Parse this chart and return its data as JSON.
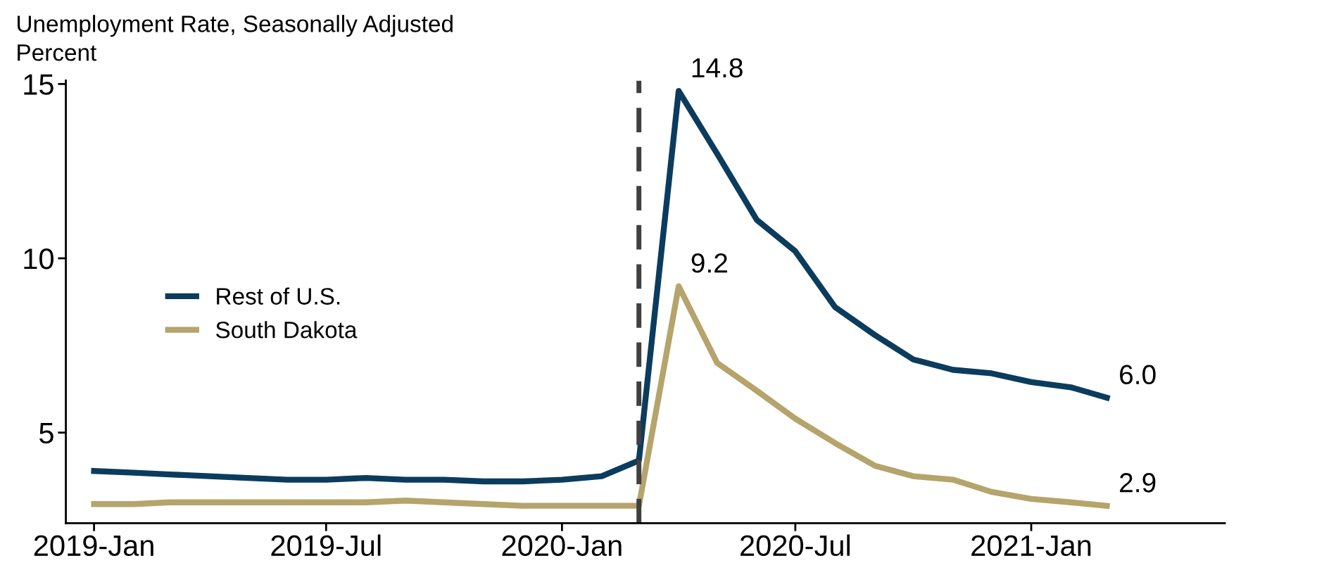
{
  "chart_data": {
    "type": "line",
    "title": "Unemployment Rate, Seasonally Adjusted",
    "subtitle": "Percent",
    "x": [
      "2019-01",
      "2019-02",
      "2019-03",
      "2019-04",
      "2019-05",
      "2019-06",
      "2019-07",
      "2019-08",
      "2019-09",
      "2019-10",
      "2019-11",
      "2019-12",
      "2020-01",
      "2020-02",
      "2020-03",
      "2020-04",
      "2020-05",
      "2020-06",
      "2020-07",
      "2020-08",
      "2020-09",
      "2020-10",
      "2020-11",
      "2020-12",
      "2021-01",
      "2021-02",
      "2021-03"
    ],
    "series": [
      {
        "name": "Rest of U.S.",
        "color": "#0b3c5d",
        "values": [
          3.9,
          3.85,
          3.8,
          3.75,
          3.7,
          3.65,
          3.65,
          3.7,
          3.65,
          3.65,
          3.6,
          3.6,
          3.65,
          3.75,
          4.2,
          14.8,
          13.0,
          11.1,
          10.2,
          8.6,
          7.8,
          7.1,
          6.8,
          6.7,
          6.45,
          6.3,
          6.0
        ]
      },
      {
        "name": "South Dakota",
        "color": "#b5a46b",
        "values": [
          2.95,
          2.95,
          3.0,
          3.0,
          3.0,
          3.0,
          3.0,
          3.0,
          3.05,
          3.0,
          2.95,
          2.9,
          2.9,
          2.9,
          2.9,
          9.2,
          7.0,
          6.2,
          5.4,
          4.7,
          4.05,
          3.75,
          3.65,
          3.3,
          3.1,
          3.0,
          2.9
        ]
      }
    ],
    "xlim": [
      "2018-12-10",
      "2021-06-01"
    ],
    "xticks": [
      {
        "value": "2019-01",
        "label": "2019-Jan"
      },
      {
        "value": "2019-07",
        "label": "2019-Jul"
      },
      {
        "value": "2020-01",
        "label": "2020-Jan"
      },
      {
        "value": "2020-07",
        "label": "2020-Jul"
      },
      {
        "value": "2021-01",
        "label": "2021-Jan"
      }
    ],
    "ylim": [
      2.4,
      15.1
    ],
    "yticks": [
      5,
      10,
      15
    ],
    "ref_lines": [
      {
        "axis": "x",
        "value": "2020-03",
        "color": "#404040",
        "line_style": "dashed"
      }
    ],
    "annotations": [
      {
        "text": "14.8",
        "x": "2020-04",
        "y": 14.8
      },
      {
        "text": "9.2",
        "x": "2020-04",
        "y": 9.2
      },
      {
        "text": "6.0",
        "x": "2021-03",
        "y": 6.0
      },
      {
        "text": "2.9",
        "x": "2021-03",
        "y": 2.9
      }
    ],
    "legend": "left",
    "grid": false,
    "line_style": "solid",
    "marker": "none"
  }
}
